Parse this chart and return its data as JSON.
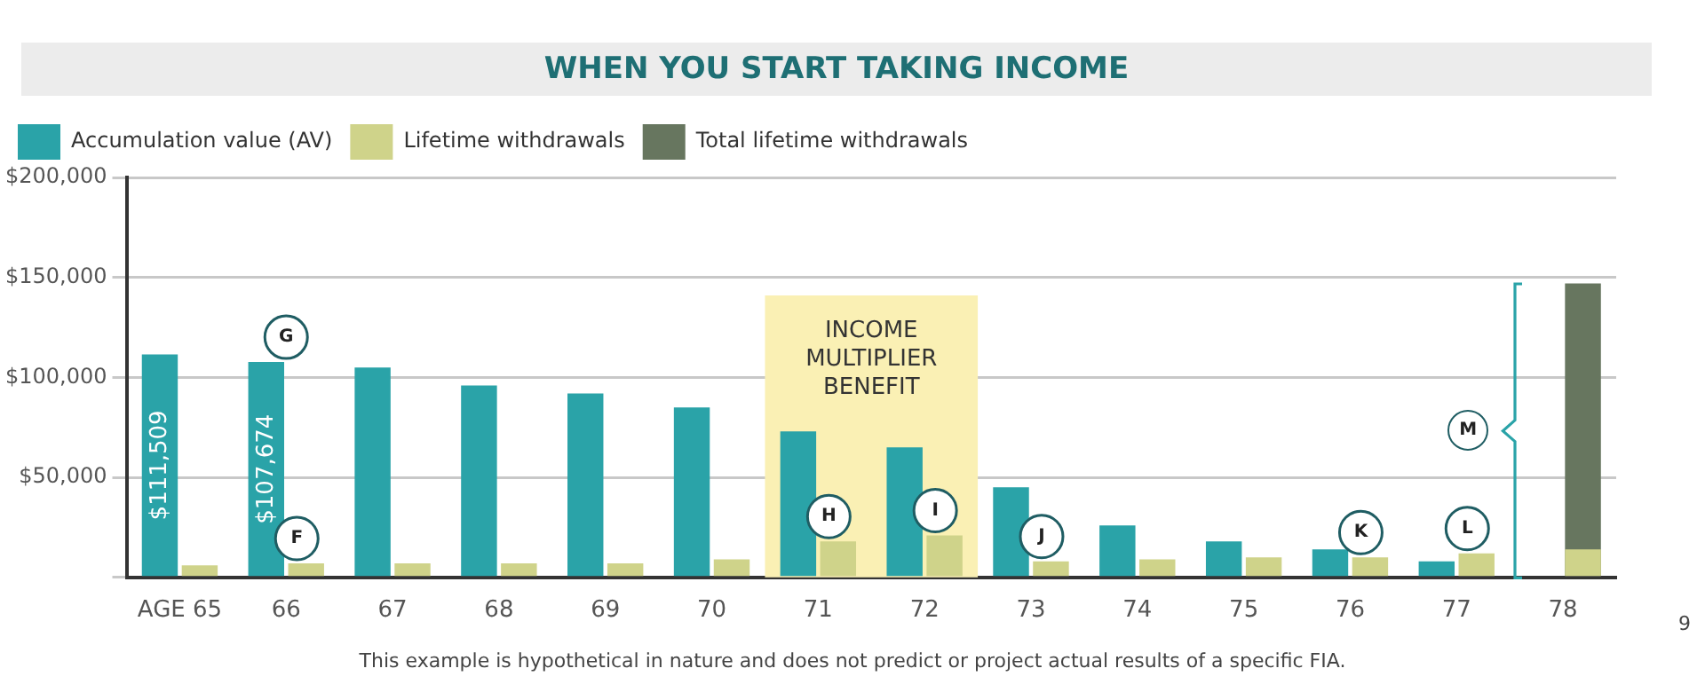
{
  "chart_data": {
    "type": "bar",
    "title": "WHEN YOU START TAKING INCOME",
    "categories": [
      "AGE 65",
      "66",
      "67",
      "68",
      "69",
      "70",
      "71",
      "72",
      "73",
      "74",
      "75",
      "76",
      "77",
      "78"
    ],
    "series": [
      {
        "name": "Accumulation value (AV)",
        "color": "#2aa3a8",
        "values": [
          111509,
          107674,
          105000,
          96000,
          92000,
          85000,
          73000,
          65000,
          45000,
          26000,
          18000,
          14000,
          8000,
          null
        ],
        "value_labels": [
          "$111,509",
          "$107,674",
          null,
          null,
          null,
          null,
          null,
          null,
          null,
          null,
          null,
          null,
          null,
          null
        ]
      },
      {
        "name": "Lifetime withdrawals",
        "color": "#cfd38a",
        "values": [
          6000,
          7000,
          7000,
          7000,
          7000,
          9000,
          18000,
          21000,
          8000,
          9000,
          10000,
          10000,
          12000,
          14000
        ]
      },
      {
        "name": "Total lifetime withdrawals",
        "color": "#67765f",
        "values": [
          null,
          null,
          null,
          null,
          null,
          null,
          null,
          null,
          null,
          null,
          null,
          null,
          null,
          147000
        ]
      }
    ],
    "ylim": [
      0,
      200000
    ],
    "yticks": [
      {
        "value": 0,
        "label": null
      },
      {
        "value": 50000,
        "label": "$50,000"
      },
      {
        "value": 100000,
        "label": "$100,000"
      },
      {
        "value": 150000,
        "label": "$150,000"
      },
      {
        "value": 200000,
        "label": "$200,000"
      }
    ],
    "grid": "y",
    "legend": "top left",
    "bands": [
      {
        "axis": "x",
        "from": "71",
        "to": "72",
        "label": "INCOME MULTIPLIER BENEFIT",
        "color": "#faf0b4"
      }
    ],
    "annotations": [
      {
        "text": "G",
        "x": "66",
        "y": 107674
      },
      {
        "text": "F",
        "x": "66",
        "y": 7000
      },
      {
        "text": "H",
        "x": "71",
        "y": 18000
      },
      {
        "text": "I",
        "x": "72",
        "y": 21000
      },
      {
        "text": "J",
        "x": "73",
        "y": 8000
      },
      {
        "text": "K",
        "x": "76",
        "y": 10000
      },
      {
        "text": "L",
        "x": "77",
        "y": 12000
      },
      "M",
      "This example is hypothetical in nature and does not predict or project actual results of a specific FIA.",
      "9"
    ]
  }
}
